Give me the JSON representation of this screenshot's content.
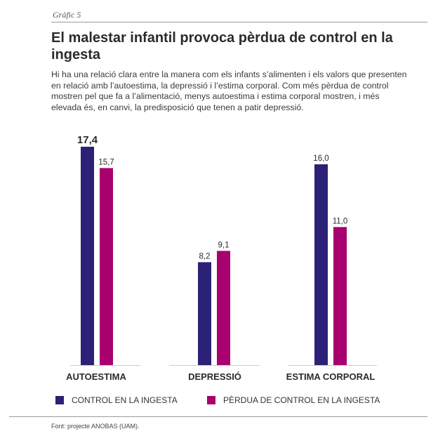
{
  "header": {
    "label": "Gràfic 5",
    "title": "El malestar infantil provoca pèrdua de control en la ingesta",
    "subtitle": "Hi ha una relació clara entre la manera com els infants s’alimenten i els valors que presenten en relació amb l’autoestima, la depressió i l’estima corporal. Com més pèrdua de control mostren pel que fa a l’alimentació, menys autoestima i estima corporal mostren, i més elevada és, en canvi, la predisposició que tenen a patir depressió."
  },
  "colors": {
    "control": "#2b2177",
    "loss": "#a8006e",
    "axis": "#cccccc"
  },
  "chart_data": {
    "type": "bar",
    "categories": [
      "AUTOESTIMA",
      "DEPRESSIÓ",
      "ESTIMA CORPORAL"
    ],
    "series": [
      {
        "name": "CONTROL EN LA INGESTA",
        "values": [
          17.4,
          8.2,
          16.0
        ],
        "labels": [
          "17,4",
          "8,2",
          "16,0"
        ]
      },
      {
        "name": "PÈRDUA DE CONTROL EN LA INGESTA",
        "values": [
          15.7,
          9.1,
          11.0
        ],
        "labels": [
          "15,7",
          "9,1",
          "11,0"
        ]
      }
    ],
    "ylim": [
      0,
      17.4
    ],
    "legend_position": "bottom-left"
  },
  "footer": {
    "source": "Font: projecte ANOBAS (UAM)."
  }
}
